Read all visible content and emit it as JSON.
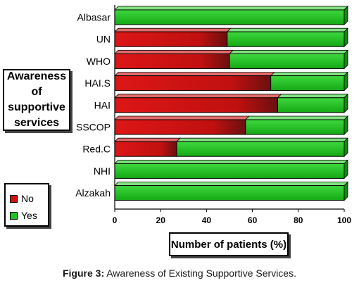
{
  "chart_data": {
    "type": "bar",
    "orientation": "horizontal",
    "stacked": true,
    "categories": [
      "Albasar",
      "UN",
      "WHO",
      "HAI.S",
      "HAI",
      "SSCOP",
      "Red.C",
      "NHI",
      "Alzakah"
    ],
    "series": [
      {
        "name": "No",
        "color": "#cc1111",
        "values": [
          0,
          49,
          50,
          68,
          71,
          57,
          27,
          0,
          0
        ]
      },
      {
        "name": "Yes",
        "color": "#22c422",
        "values": [
          100,
          51,
          50,
          32,
          29,
          43,
          73,
          100,
          100
        ]
      }
    ],
    "title": "Awareness of supportive services",
    "xlabel": "Number of patients (%)",
    "xlim": [
      0,
      100
    ],
    "xticks": [
      0,
      20,
      40,
      60,
      80,
      100
    ],
    "legend_position": "bottom-left",
    "grid": false
  },
  "caption": {
    "label": "Figure 3:",
    "text": " Awareness of Existing Supportive Services."
  }
}
